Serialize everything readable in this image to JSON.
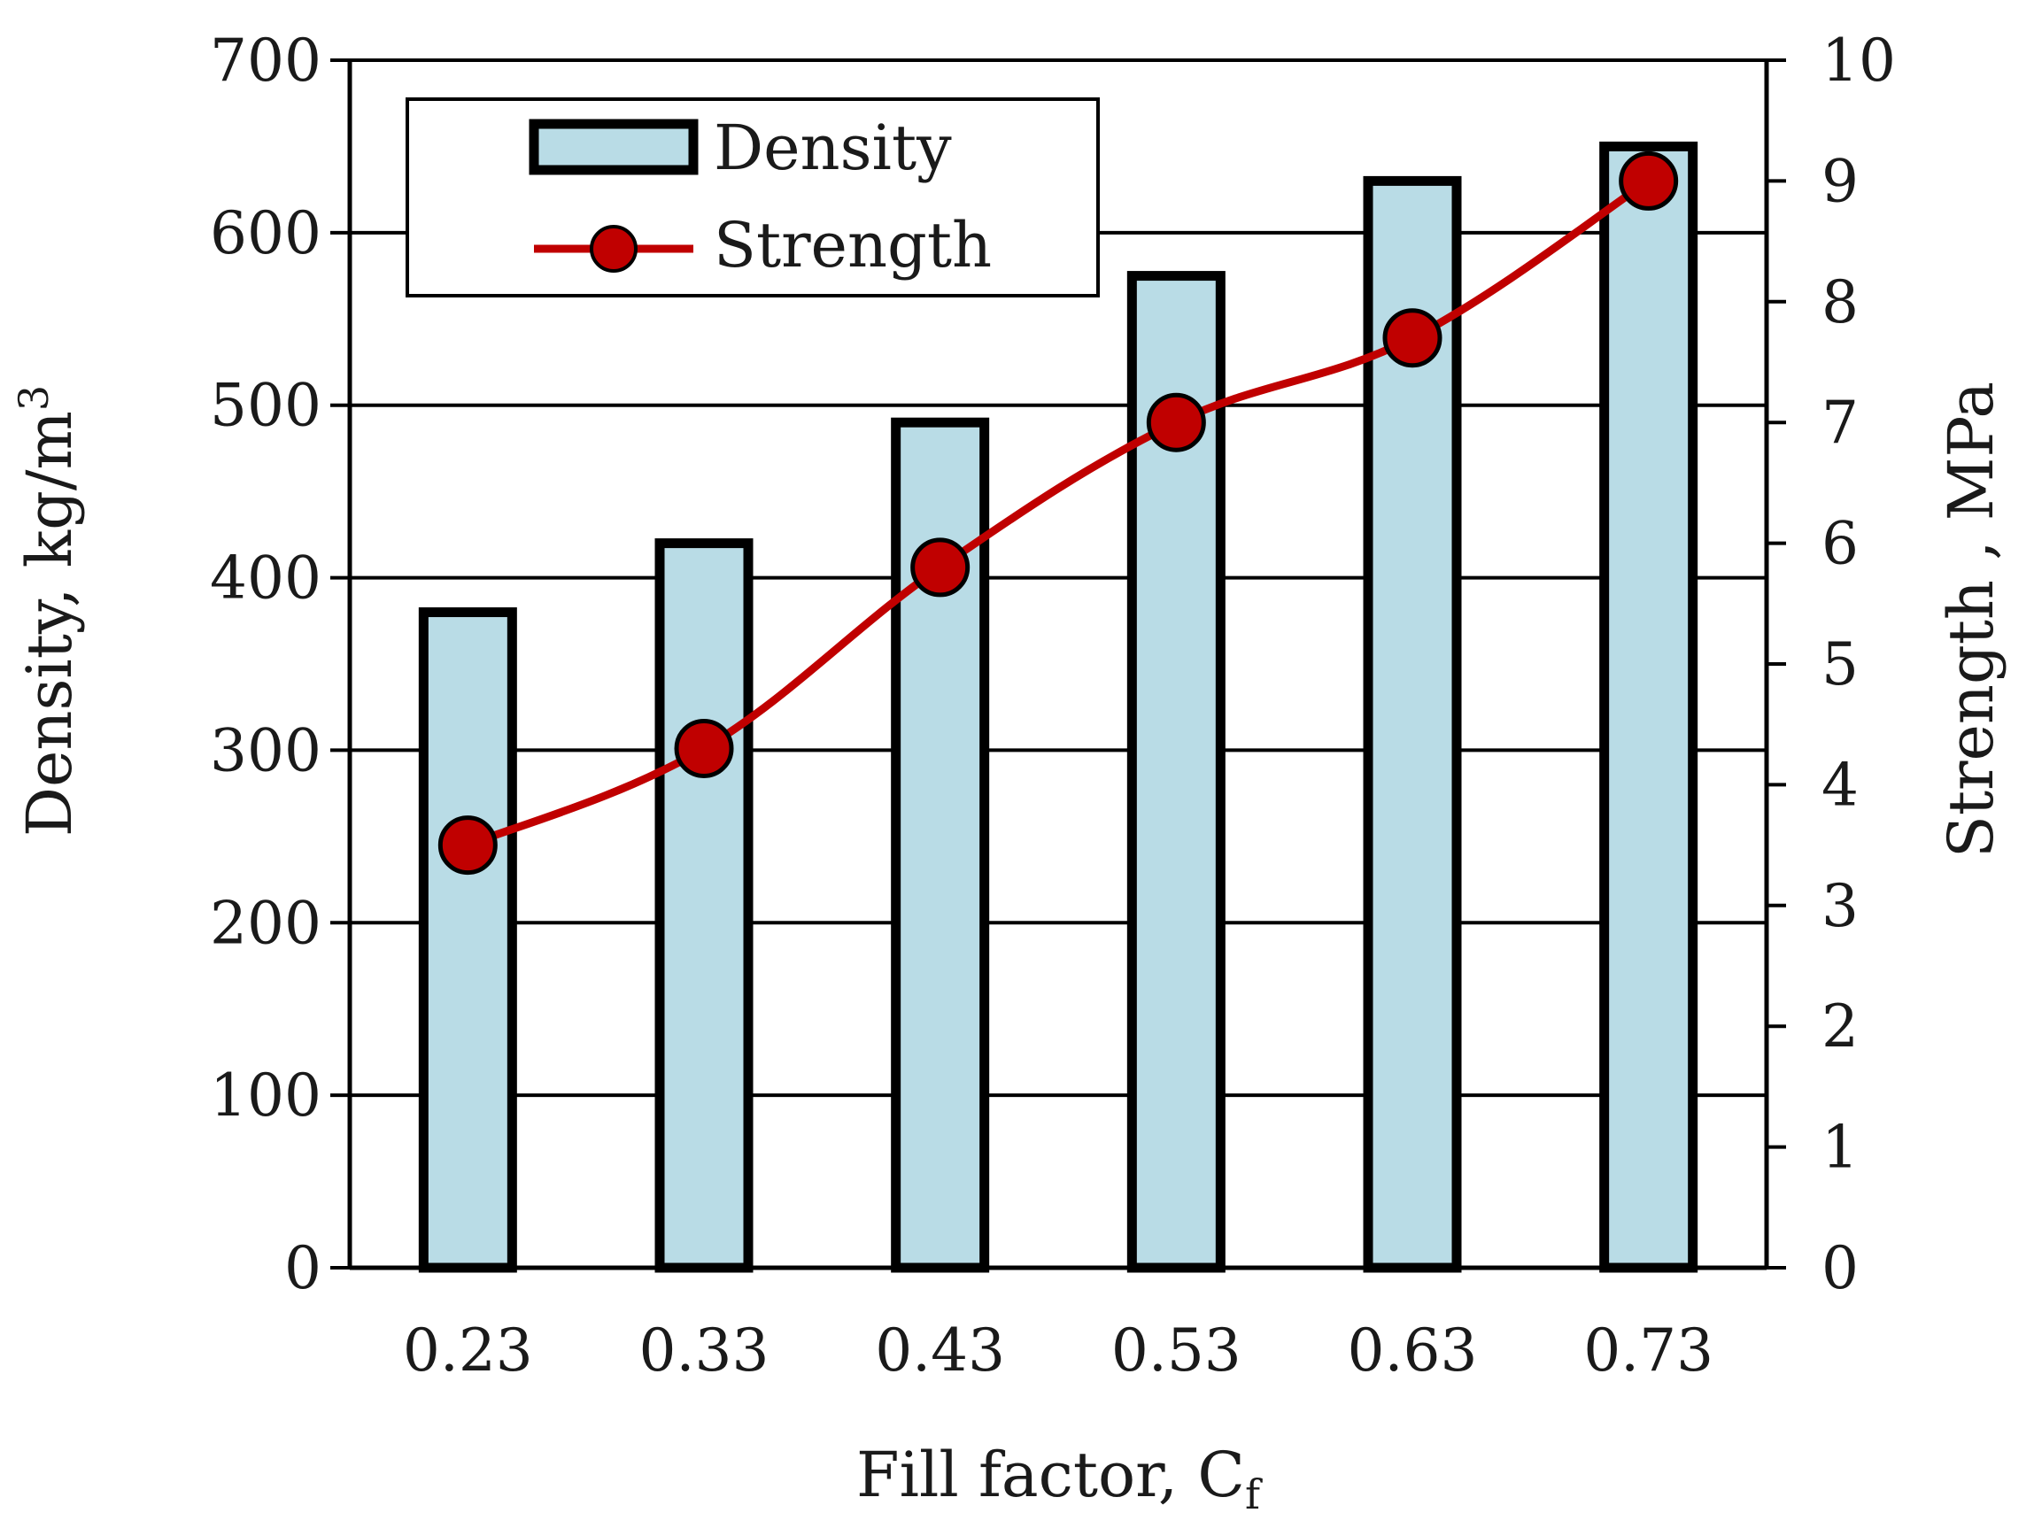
{
  "chart_data": {
    "type": "bar",
    "categories": [
      "0.23",
      "0.33",
      "0.43",
      "0.53",
      "0.63",
      "0.73"
    ],
    "series": [
      {
        "name": "Density",
        "type": "bar",
        "axis": "left",
        "values": [
          380,
          420,
          490,
          575,
          630,
          650
        ]
      },
      {
        "name": "Strength",
        "type": "line",
        "axis": "right",
        "values": [
          3.5,
          4.3,
          5.8,
          7.0,
          7.7,
          9.0
        ]
      }
    ],
    "xlabel": "Fill factor, C",
    "xlabel_sub": "f",
    "ylabel_left": "Density, kg/m",
    "ylabel_left_sup": "3",
    "ylabel_right": "Strength , MPa",
    "ylim_left": [
      0,
      700
    ],
    "ylim_right": [
      0,
      10
    ],
    "yticks_left": [
      "0",
      "100",
      "200",
      "300",
      "400",
      "500",
      "600",
      "700"
    ],
    "yticks_right": [
      "0",
      "1",
      "2",
      "3",
      "4",
      "5",
      "6",
      "7",
      "8",
      "9",
      "10"
    ],
    "grid": true,
    "legend_position": "top-left",
    "colors": {
      "bar_fill": "#b9dce6",
      "bar_stroke": "#000000",
      "line": "#c00000",
      "marker": "#c00000"
    }
  }
}
